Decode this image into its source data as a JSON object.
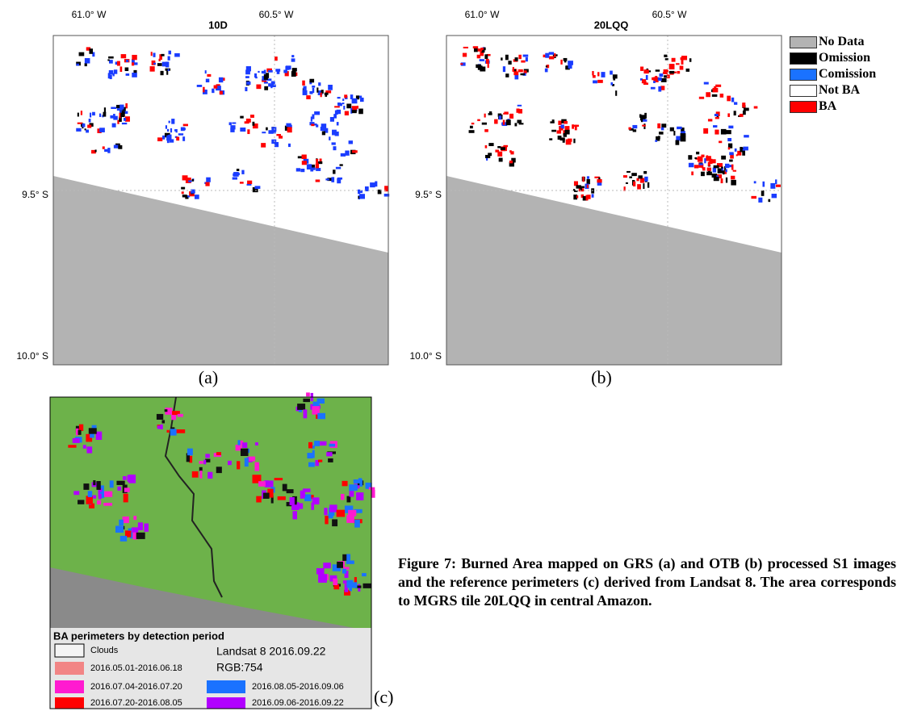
{
  "panels": [
    {
      "title": "10D",
      "lon_labels": [
        "61.0° W",
        "60.5° W"
      ],
      "lat_labels": [
        "9.5° S",
        "10.0° S"
      ],
      "label": "(a)"
    },
    {
      "title": "20LQQ",
      "lon_labels": [
        "61.0° W",
        "60.5° W"
      ],
      "lat_labels": [
        "9.5° S",
        "10.0° S"
      ],
      "label": "(b)"
    }
  ],
  "legend": [
    "No Data",
    "Omission",
    "Comission",
    "Not BA",
    "BA"
  ],
  "reference_panel": {
    "legend_title": "BA perimeters by detection period",
    "items": [
      "Clouds",
      "2016.05.01-2016.06.18",
      "2016.07.04-2016.07.20",
      "2016.07.20-2016.08.05",
      "2016.08.05-2016.09.06",
      "2016.09.06-2016.09.22"
    ],
    "image_info": [
      "Landsat 8 2016.09.22",
      "RGB:754"
    ],
    "label": "(c)"
  },
  "caption": "Figure 7: Burned Area mapped on GRS (a) and OTB (b) processed S1 images and the reference perimeters (c) derived from Landsat 8. The area corresponds to MGRS tile 20LQQ in central Amazon."
}
